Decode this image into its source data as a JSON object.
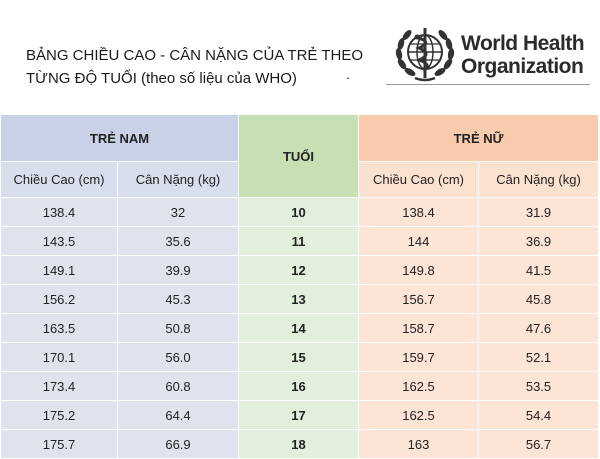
{
  "title": {
    "line1": "BẢNG CHIỀU CAO - CÂN NẶNG CỦA TRẺ THEO",
    "line2": "TỪNG ĐỘ TUỔI (theo số liệu của WHO)",
    "trailing_dot": "."
  },
  "logo": {
    "line1": "World Health",
    "line2": "Organization",
    "emblem_icon": "who-emblem-icon"
  },
  "colors": {
    "boy_header": "#c9d1e6",
    "age_header": "#c6e0b4",
    "girl_header": "#f8cbad",
    "boy_cell": "#dfe3ee",
    "age_cell": "#e2efda",
    "girl_cell": "#fce4d6"
  },
  "table": {
    "boys_header": "TRẺ NAM",
    "age_header": "TUỔI",
    "girls_header": "TRẺ NỮ",
    "height_label": "Chiều Cao (cm)",
    "weight_label": "Cân Nặng (kg)",
    "rows": [
      {
        "boy_height": "138.4",
        "boy_weight": "32",
        "age": "10",
        "girl_height": "138.4",
        "girl_weight": "31.9"
      },
      {
        "boy_height": "143.5",
        "boy_weight": "35.6",
        "age": "11",
        "girl_height": "144",
        "girl_weight": "36.9"
      },
      {
        "boy_height": "149.1",
        "boy_weight": "39.9",
        "age": "12",
        "girl_height": "149.8",
        "girl_weight": "41.5"
      },
      {
        "boy_height": "156.2",
        "boy_weight": "45.3",
        "age": "13",
        "girl_height": "156.7",
        "girl_weight": "45.8"
      },
      {
        "boy_height": "163.5",
        "boy_weight": "50.8",
        "age": "14",
        "girl_height": "158.7",
        "girl_weight": "47.6"
      },
      {
        "boy_height": "170.1",
        "boy_weight": "56.0",
        "age": "15",
        "girl_height": "159.7",
        "girl_weight": "52.1"
      },
      {
        "boy_height": "173.4",
        "boy_weight": "60.8",
        "age": "16",
        "girl_height": "162.5",
        "girl_weight": "53.5"
      },
      {
        "boy_height": "175.2",
        "boy_weight": "64.4",
        "age": "17",
        "girl_height": "162.5",
        "girl_weight": "54.4"
      },
      {
        "boy_height": "175.7",
        "boy_weight": "66.9",
        "age": "18",
        "girl_height": "163",
        "girl_weight": "56.7"
      }
    ]
  }
}
